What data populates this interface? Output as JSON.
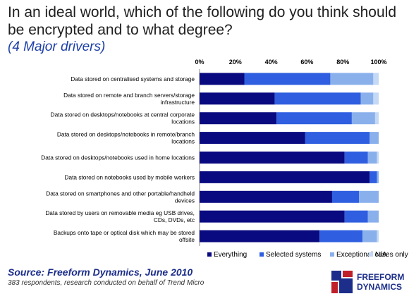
{
  "title": "In an ideal world, which of the following do you think should be encrypted and to what degree?",
  "subtitle": "(4 Major drivers)",
  "source": "Source: Freeform Dynamics, June 2010",
  "note": "383 respondents, research conducted on behalf of Trend Micro",
  "logo": {
    "line1": "FREEFORM",
    "line2": "DYNAMICS"
  },
  "colors": {
    "everything": "#0a0a80",
    "selected": "#2f5fe0",
    "exceptional": "#8ab0ec",
    "na": "#c3d9f5"
  },
  "chart_data": {
    "type": "bar",
    "orientation": "horizontal",
    "stacked": true,
    "xlim": [
      0,
      100
    ],
    "x_ticks": [
      "0%",
      "20%",
      "40%",
      "60%",
      "80%",
      "100%"
    ],
    "legend_position": "bottom",
    "categories": [
      [
        "Data stored on centralised systems and storage"
      ],
      [
        "Data stored on remote and branch servers/storage",
        "infrastructure"
      ],
      [
        "Data stored on desktops/notebooks  at central corporate",
        "locations"
      ],
      [
        "Data stored on desktops/notebooks  in remote/branch",
        "locations"
      ],
      [
        "Data stored on desktops/notebooks  used in home locations"
      ],
      [
        "Data stored on notebooks used by mobile workers"
      ],
      [
        "Data stored on smartphones and other portable/handheld",
        "devices"
      ],
      [
        "Data stored by users on removable media eg USB drives,",
        "CDs, DVDs, etc"
      ],
      [
        "Backups onto tape or optical disk which may be stored",
        "offsite"
      ]
    ],
    "series": [
      {
        "name": "Everything",
        "color": "#0a0a80",
        "values": [
          25,
          42,
          43,
          59,
          81,
          95,
          74,
          81,
          67
        ]
      },
      {
        "name": "Selected systems",
        "color": "#2f5fe0",
        "values": [
          48,
          48,
          42,
          36,
          13,
          4,
          15,
          13,
          24
        ]
      },
      {
        "name": "Exceptional cases only",
        "color": "#8ab0ec",
        "values": [
          24,
          7,
          13,
          5,
          5,
          1,
          11,
          6,
          8
        ]
      },
      {
        "name": "N/A",
        "color": "#c3d9f5",
        "values": [
          3,
          3,
          2,
          0,
          1,
          0,
          0,
          0,
          1
        ]
      }
    ]
  }
}
